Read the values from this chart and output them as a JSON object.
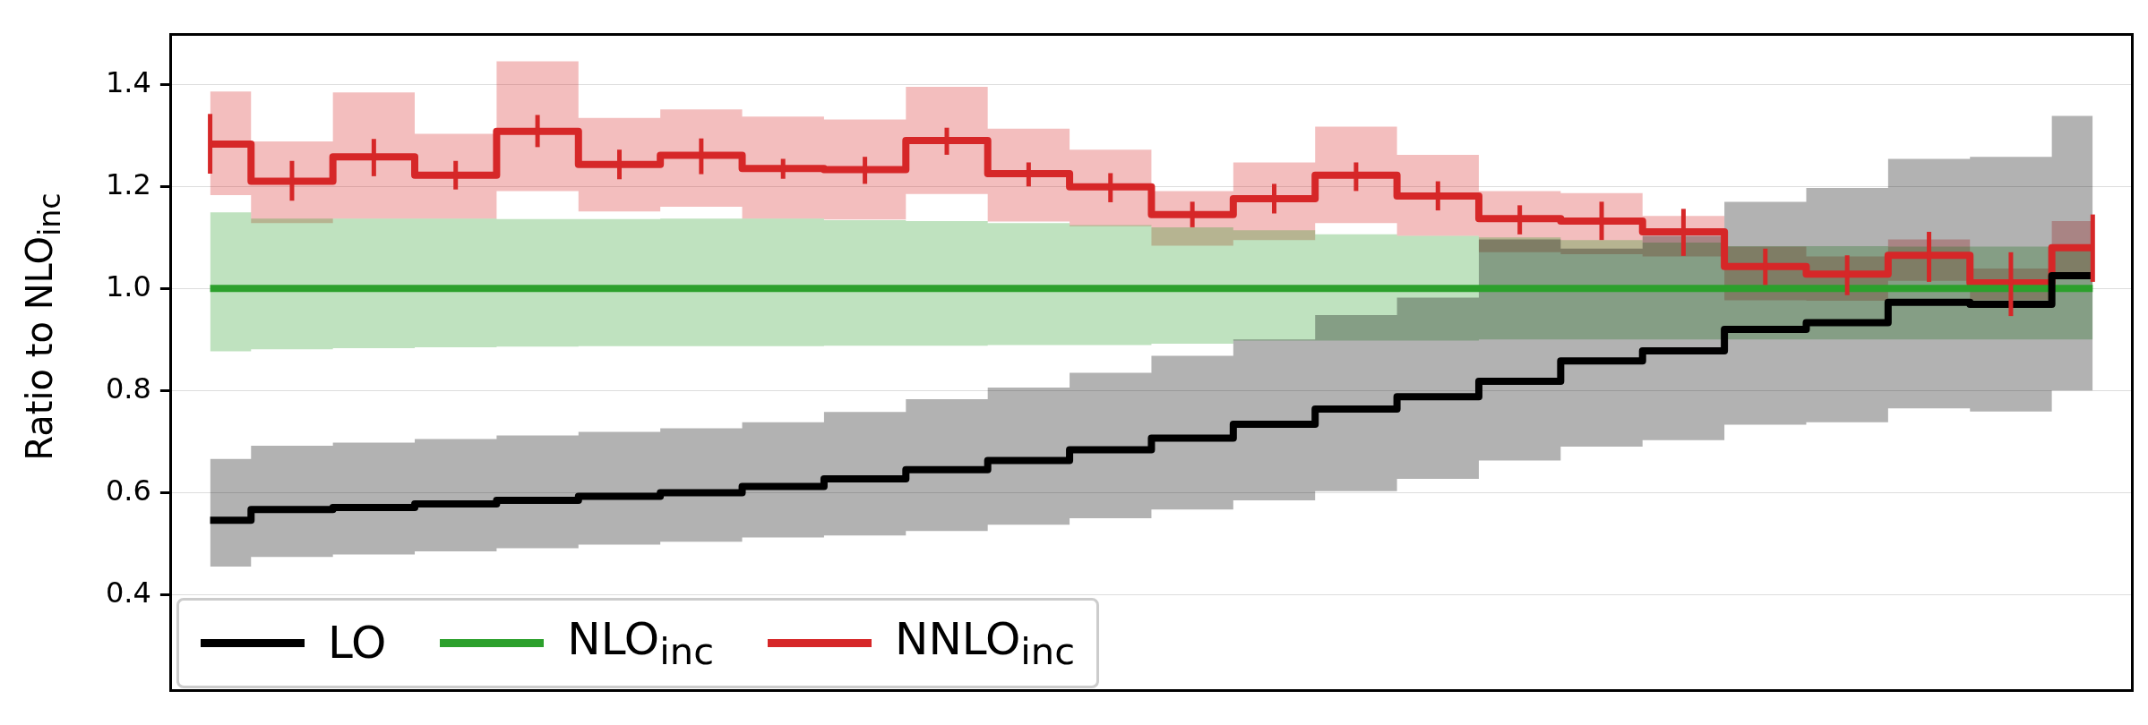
{
  "chart_data": {
    "type": "step",
    "ylabel": "Ratio to NLO$_{inc}$",
    "categories": [
      null,
      null,
      null,
      null,
      null,
      null,
      null,
      null,
      null,
      null,
      null,
      null,
      null,
      null,
      null,
      null,
      null,
      null,
      null,
      null,
      null,
      null,
      null,
      null
    ],
    "ylim": [
      0.21,
      1.5
    ],
    "yticks": [
      0.4,
      0.6,
      0.8,
      {
        "value": 1.0,
        "label": "1.0"
      },
      1.2,
      1.4
    ],
    "grid": "y",
    "legend": "bottom left",
    "line_style": "solid",
    "series": [
      {
        "name": "LO",
        "color": "#000000",
        "values": [
          0.546,
          0.567,
          0.571,
          0.578,
          0.585,
          0.593,
          0.6,
          0.612,
          0.627,
          0.645,
          0.663,
          0.684,
          0.707,
          0.734,
          0.764,
          0.788,
          0.818,
          0.858,
          0.878,
          0.92,
          0.933,
          0.973,
          0.969,
          1.025
        ],
        "lower": [
          0.455,
          0.474,
          0.479,
          0.485,
          0.491,
          0.498,
          0.504,
          0.512,
          0.516,
          0.525,
          0.537,
          0.55,
          0.567,
          0.585,
          0.603,
          0.627,
          0.663,
          0.69,
          0.703,
          0.733,
          0.738,
          0.765,
          0.759,
          0.8
        ],
        "upper": [
          0.666,
          0.692,
          0.698,
          0.705,
          0.712,
          0.719,
          0.726,
          0.738,
          0.758,
          0.783,
          0.806,
          0.835,
          0.868,
          0.9,
          0.948,
          0.982,
          1.096,
          1.078,
          1.103,
          1.17,
          1.197,
          1.254,
          1.258,
          1.338
        ]
      },
      {
        "name": "NLO$_{inc}$",
        "color": "#2ca02c",
        "values": [
          1.0,
          1.0,
          1.0,
          1.0,
          1.0,
          1.0,
          1.0,
          1.0,
          1.0,
          1.0,
          1.0,
          1.0,
          1.0,
          1.0,
          1.0,
          1.0,
          1.0,
          1.0,
          1.0,
          1.0,
          1.0,
          1.0,
          1.0,
          1.0
        ],
        "lower": [
          0.877,
          0.881,
          0.883,
          0.885,
          0.886,
          0.887,
          0.887,
          0.887,
          0.888,
          0.888,
          0.889,
          0.889,
          0.892,
          0.898,
          0.898,
          0.898,
          0.9,
          0.9,
          0.9,
          0.9,
          0.9,
          0.9,
          0.9,
          0.9
        ],
        "upper": [
          1.149,
          1.137,
          1.137,
          1.137,
          1.136,
          1.136,
          1.137,
          1.137,
          1.134,
          1.132,
          1.128,
          1.124,
          1.12,
          1.114,
          1.106,
          1.103,
          1.1,
          1.095,
          1.09,
          1.083,
          1.083,
          1.082,
          1.082,
          1.082
        ]
      },
      {
        "name": "NNLO$_{inc}$",
        "color": "#d62728",
        "values": [
          1.283,
          1.21,
          1.258,
          1.222,
          1.308,
          1.243,
          1.261,
          1.235,
          1.233,
          1.29,
          1.225,
          1.199,
          1.145,
          1.176,
          1.222,
          1.181,
          1.137,
          1.132,
          1.111,
          1.043,
          1.028,
          1.065,
          1.011,
          1.08
        ],
        "errors": [
          [
            1.225,
            1.342
          ],
          [
            1.172,
            1.25
          ],
          [
            1.22,
            1.293
          ],
          [
            1.194,
            1.25
          ],
          [
            1.277,
            1.34
          ],
          [
            1.214,
            1.272
          ],
          [
            1.224,
            1.294
          ],
          [
            1.215,
            1.254
          ],
          [
            1.205,
            1.258
          ],
          [
            1.262,
            1.315
          ],
          [
            1.2,
            1.247
          ],
          [
            1.169,
            1.226
          ],
          [
            1.12,
            1.17
          ],
          [
            1.147,
            1.205
          ],
          [
            1.191,
            1.247
          ],
          [
            1.153,
            1.21
          ],
          [
            1.106,
            1.163
          ],
          [
            1.095,
            1.17
          ],
          [
            1.064,
            1.156
          ],
          [
            1.007,
            1.078
          ],
          [
            0.987,
            1.065
          ],
          [
            1.013,
            1.111
          ],
          [
            0.946,
            1.071
          ],
          [
            1.013,
            1.145
          ]
        ],
        "lower": [
          1.183,
          1.128,
          1.137,
          1.137,
          1.191,
          1.151,
          1.16,
          1.137,
          1.135,
          1.185,
          1.131,
          1.122,
          1.084,
          1.095,
          1.128,
          1.103,
          1.071,
          1.067,
          1.063,
          0.977,
          0.976,
          1.015,
          0.977,
          1.032
        ],
        "upper": [
          1.386,
          1.288,
          1.384,
          1.303,
          1.445,
          1.334,
          1.351,
          1.337,
          1.331,
          1.395,
          1.313,
          1.272,
          1.191,
          1.247,
          1.317,
          1.262,
          1.191,
          1.187,
          1.142,
          1.082,
          1.063,
          1.096,
          1.039,
          1.132
        ]
      }
    ]
  }
}
